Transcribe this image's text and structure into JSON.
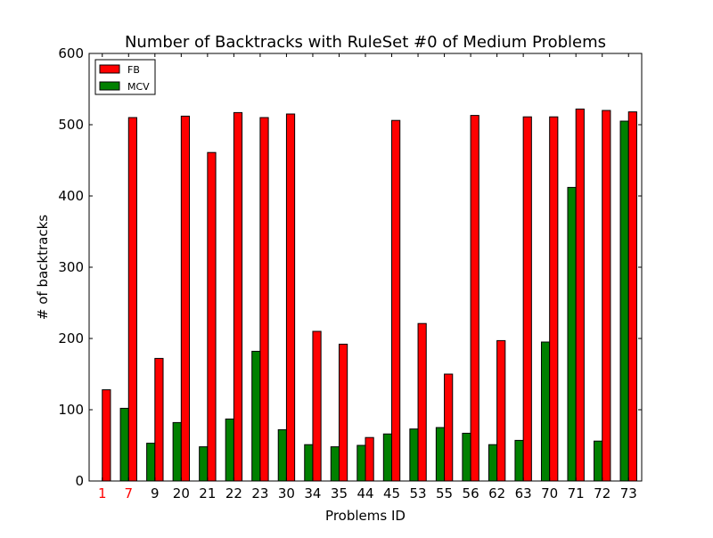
{
  "chart_data": {
    "type": "bar",
    "title": "Number of Backtracks with RuleSet #0 of Medium Problems",
    "xlabel": "Problems ID",
    "ylabel": "# of backtracks",
    "ylim": [
      0,
      600
    ],
    "yticks": [
      0,
      100,
      200,
      300,
      400,
      500,
      600
    ],
    "grid": false,
    "legend_position": "top-left",
    "categories": [
      "1",
      "7",
      "9",
      "20",
      "21",
      "22",
      "23",
      "30",
      "34",
      "35",
      "44",
      "45",
      "53",
      "55",
      "56",
      "62",
      "63",
      "70",
      "71",
      "72",
      "73"
    ],
    "highlighted_categories": [
      "1",
      "7"
    ],
    "highlight_color": "#ff0000",
    "series": [
      {
        "name": "FB",
        "color": "#ff0000",
        "values": [
          128,
          510,
          172,
          512,
          461,
          517,
          510,
          515,
          210,
          192,
          61,
          506,
          221,
          150,
          513,
          197,
          511,
          511,
          522,
          520,
          518
        ]
      },
      {
        "name": "MCV",
        "color": "#008000",
        "values": [
          0,
          102,
          53,
          82,
          48,
          87,
          182,
          72,
          51,
          48,
          50,
          66,
          73,
          75,
          67,
          51,
          57,
          195,
          412,
          56,
          505
        ]
      }
    ]
  }
}
